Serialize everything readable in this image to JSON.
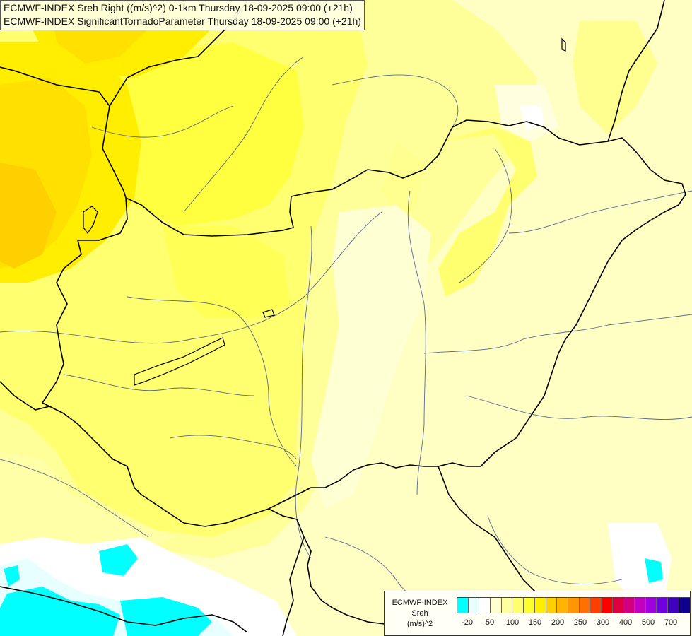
{
  "titles": {
    "line1": "ECMWF-INDEX Sreh Right ((m/s)^2) 0-1km Thursday 18-09-2025 09:00 (+21h)",
    "line2": "ECMWF-INDEX SignificantTornadoParameter Thursday 18-09-2025 09:00 (+21h)"
  },
  "legend": {
    "line1": "ECMWF-INDEX",
    "line2": "Sreh",
    "line3": "(m/s)^2",
    "colors": [
      "#00ffff",
      "#e8ffff",
      "#ffffff",
      "#ffffd0",
      "#ffffa0",
      "#ffff70",
      "#ffff30",
      "#ffee00",
      "#ffd000",
      "#ffb400",
      "#ff9600",
      "#ff7000",
      "#ff4000",
      "#ff0000",
      "#e00040",
      "#d00080",
      "#c000c0",
      "#a000e0",
      "#7000e0",
      "#4000c0",
      "#100090"
    ],
    "ticks": [
      "-20",
      "50",
      "100",
      "150",
      "200",
      "250",
      "300",
      "400",
      "500",
      "700"
    ]
  }
}
